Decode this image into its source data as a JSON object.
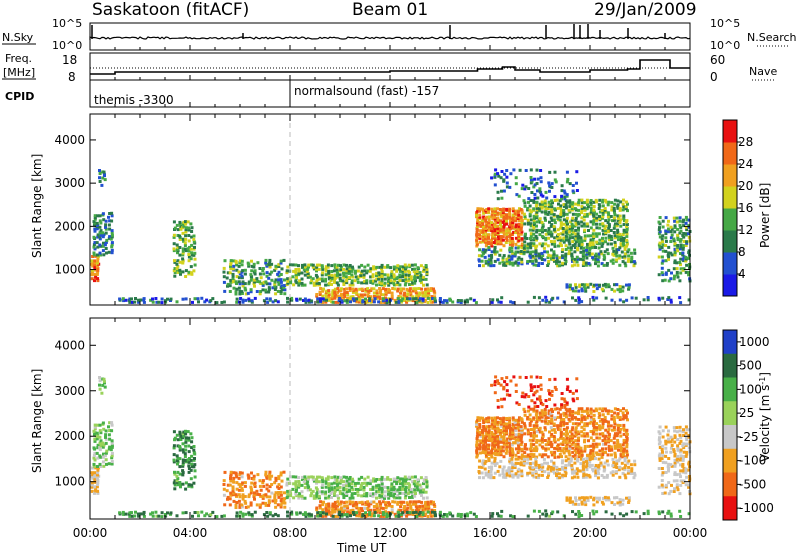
{
  "header": {
    "station": "Saskatoon (fitACF)",
    "beam": "Beam 01",
    "date": "29/Jan/2009"
  },
  "status_panel": {
    "nsky_label": "N.Sky",
    "nsky_ticks": [
      "10^5",
      "10^0"
    ],
    "nsearch_label": "N.Search",
    "nsearch_ticks": [
      "10^5",
      "10^0"
    ],
    "freq_label": "Freq.",
    "freq_unit": "[MHz]",
    "freq_ticks": [
      "18",
      "8"
    ],
    "nave_label": "Nave",
    "nave_ticks": [
      "60",
      "0"
    ],
    "cpid_label": "CPID",
    "cpid_entries": [
      {
        "text": "themis -3300",
        "start_hour": 0
      },
      {
        "text": "normalsound (fast) -157",
        "start_hour": 8
      }
    ]
  },
  "chart_data": [
    {
      "type": "heatmap",
      "name": "power",
      "ylabel": "Slant Range [km]",
      "y_ticks": [
        "1000",
        "2000",
        "3000",
        "4000"
      ],
      "y_tick_values": [
        1000,
        2000,
        3000,
        4000
      ],
      "ylim": [
        180,
        4600
      ],
      "xlim_hours": [
        0,
        24
      ],
      "colorbar_label": "Power [dB]",
      "colorbar_ticks": [
        "4",
        "8",
        "12",
        "16",
        "20",
        "24",
        "28"
      ],
      "colorbar_values": [
        4,
        8,
        12,
        16,
        20,
        24,
        28
      ],
      "colorbar_range": [
        0,
        30
      ],
      "colors": [
        "#1a1ae6",
        "#2250d0",
        "#2a7a4a",
        "#45a845",
        "#d2d21e",
        "#f0a020",
        "#f06818",
        "#e81010"
      ]
    },
    {
      "type": "heatmap",
      "name": "velocity",
      "ylabel": "Slant Range [km]",
      "y_ticks": [
        "1000",
        "2000",
        "3000",
        "4000"
      ],
      "y_tick_values": [
        1000,
        2000,
        3000,
        4000
      ],
      "ylim": [
        180,
        4600
      ],
      "xlim_hours": [
        0,
        24
      ],
      "xlabel": "Time UT",
      "x_ticks": [
        "00:00",
        "04:00",
        "08:00",
        "12:00",
        "16:00",
        "20:00",
        "00:00"
      ],
      "colorbar_label": "Velocity [m s",
      "colorbar_label_sup": "-1",
      "colorbar_label_end": "]",
      "colorbar_ticks": [
        "1000",
        "500",
        "100",
        "25",
        "-25",
        "-100",
        "-500",
        "-1000"
      ],
      "colors": [
        "#2040c8",
        "#2a6a40",
        "#48b048",
        "#9ad25a",
        "#c8c8c8",
        "#f0a020",
        "#f06818",
        "#e81010"
      ]
    }
  ],
  "scatter_regions": [
    {
      "t0": 0.0,
      "t1": 0.35,
      "r0": 700,
      "r1": 1300,
      "power": 24,
      "velocity": -25,
      "density": 0.9
    },
    {
      "t0": 0.1,
      "t1": 0.9,
      "r0": 1300,
      "r1": 2300,
      "power": 10,
      "velocity": 25,
      "density": 0.55
    },
    {
      "t0": 0.3,
      "t1": 0.6,
      "r0": 2900,
      "r1": 3300,
      "power": 8,
      "velocity": 25,
      "density": 0.35
    },
    {
      "t0": 3.3,
      "t1": 4.2,
      "r0": 800,
      "r1": 2100,
      "power": 14,
      "velocity": 100,
      "density": 0.45
    },
    {
      "t0": 5.3,
      "t1": 7.8,
      "r0": 400,
      "r1": 1200,
      "power": 12,
      "velocity": -100,
      "density": 0.4
    },
    {
      "t0": 7.8,
      "t1": 13.5,
      "r0": 600,
      "r1": 1100,
      "power": 14,
      "velocity": 25,
      "density": 0.6
    },
    {
      "t0": 9.0,
      "t1": 13.8,
      "r0": 200,
      "r1": 550,
      "power": 22,
      "velocity": -100,
      "density": 0.75
    },
    {
      "t0": 1.0,
      "t1": 15.5,
      "r0": 200,
      "r1": 320,
      "power": 8,
      "velocity": 100,
      "density": 0.45
    },
    {
      "t0": 15.4,
      "t1": 17.3,
      "r0": 1500,
      "r1": 2400,
      "power": 24,
      "velocity": -100,
      "density": 0.85
    },
    {
      "t0": 17.3,
      "t1": 21.5,
      "r0": 1500,
      "r1": 2600,
      "power": 14,
      "velocity": -100,
      "density": 0.6
    },
    {
      "t0": 15.5,
      "t1": 21.8,
      "r0": 1050,
      "r1": 1500,
      "power": 12,
      "velocity": -25,
      "density": 0.5
    },
    {
      "t0": 16.0,
      "t1": 19.5,
      "r0": 2600,
      "r1": 3300,
      "power": 8,
      "velocity": -500,
      "density": 0.2
    },
    {
      "t0": 19.0,
      "t1": 21.6,
      "r0": 450,
      "r1": 650,
      "power": 12,
      "velocity": -25,
      "density": 0.55
    },
    {
      "t0": 22.7,
      "t1": 24.0,
      "r0": 700,
      "r1": 2200,
      "power": 12,
      "velocity": -25,
      "density": 0.45
    },
    {
      "t0": 16.0,
      "t1": 24.0,
      "r0": 200,
      "r1": 350,
      "power": 6,
      "velocity": 100,
      "density": 0.25
    }
  ]
}
